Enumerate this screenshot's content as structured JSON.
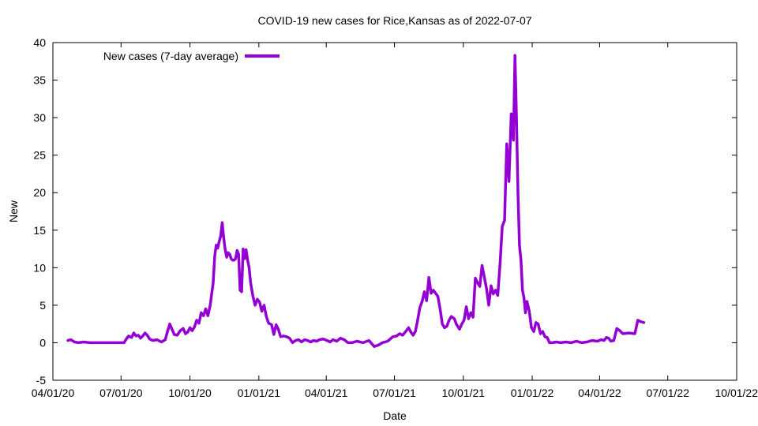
{
  "chart_data": {
    "type": "line",
    "title": "COVID-19 new cases for Rice,Kansas as of 2022-07-07",
    "xlabel": "Date",
    "ylabel": "New",
    "xlim": [
      "2020-04-01",
      "2022-10-01"
    ],
    "ylim": [
      -5,
      40
    ],
    "x_ticks": [
      {
        "date": "2020-04-01",
        "label": "04/01/20"
      },
      {
        "date": "2020-07-01",
        "label": "07/01/20"
      },
      {
        "date": "2020-10-01",
        "label": "10/01/20"
      },
      {
        "date": "2021-01-01",
        "label": "01/01/21"
      },
      {
        "date": "2021-04-01",
        "label": "04/01/21"
      },
      {
        "date": "2021-07-01",
        "label": "07/01/21"
      },
      {
        "date": "2021-10-01",
        "label": "10/01/21"
      },
      {
        "date": "2022-01-01",
        "label": "01/01/22"
      },
      {
        "date": "2022-04-01",
        "label": "04/01/22"
      },
      {
        "date": "2022-07-01",
        "label": "07/01/22"
      },
      {
        "date": "2022-10-01",
        "label": "10/01/22"
      }
    ],
    "y_ticks": [
      -5,
      0,
      5,
      10,
      15,
      20,
      25,
      30,
      35,
      40
    ],
    "grid": false,
    "legend": "top-left",
    "series": [
      {
        "name": "New cases (7-day average)",
        "color": "#9400D3",
        "points": [
          [
            "2020-04-21",
            0.3
          ],
          [
            "2020-04-25",
            0.4
          ],
          [
            "2020-04-30",
            0.1
          ],
          [
            "2020-05-05",
            0.0
          ],
          [
            "2020-05-12",
            0.1
          ],
          [
            "2020-05-20",
            0.0
          ],
          [
            "2020-06-01",
            0.0
          ],
          [
            "2020-06-15",
            0.0
          ],
          [
            "2020-06-30",
            0.0
          ],
          [
            "2020-07-05",
            0.0
          ],
          [
            "2020-07-08",
            0.5
          ],
          [
            "2020-07-11",
            0.9
          ],
          [
            "2020-07-15",
            0.7
          ],
          [
            "2020-07-18",
            1.3
          ],
          [
            "2020-07-21",
            0.9
          ],
          [
            "2020-07-24",
            1.0
          ],
          [
            "2020-07-27",
            0.6
          ],
          [
            "2020-07-30",
            0.9
          ],
          [
            "2020-08-02",
            1.3
          ],
          [
            "2020-08-05",
            1.0
          ],
          [
            "2020-08-08",
            0.5
          ],
          [
            "2020-08-12",
            0.3
          ],
          [
            "2020-08-18",
            0.4
          ],
          [
            "2020-08-24",
            0.1
          ],
          [
            "2020-08-29",
            0.4
          ],
          [
            "2020-09-01",
            1.5
          ],
          [
            "2020-09-04",
            2.5
          ],
          [
            "2020-09-07",
            1.8
          ],
          [
            "2020-09-10",
            1.1
          ],
          [
            "2020-09-14",
            1.0
          ],
          [
            "2020-09-18",
            1.6
          ],
          [
            "2020-09-22",
            1.9
          ],
          [
            "2020-09-25",
            1.2
          ],
          [
            "2020-09-28",
            1.4
          ],
          [
            "2020-10-01",
            2.0
          ],
          [
            "2020-10-04",
            1.6
          ],
          [
            "2020-10-07",
            2.1
          ],
          [
            "2020-10-10",
            3.0
          ],
          [
            "2020-10-13",
            2.6
          ],
          [
            "2020-10-16",
            4.0
          ],
          [
            "2020-10-19",
            3.6
          ],
          [
            "2020-10-22",
            4.5
          ],
          [
            "2020-10-25",
            3.6
          ],
          [
            "2020-10-28",
            5.0
          ],
          [
            "2020-11-01",
            8.0
          ],
          [
            "2020-11-03",
            11.5
          ],
          [
            "2020-11-05",
            13.0
          ],
          [
            "2020-11-07",
            12.6
          ],
          [
            "2020-11-09",
            13.5
          ],
          [
            "2020-11-11",
            14.2
          ],
          [
            "2020-11-13",
            16.0
          ],
          [
            "2020-11-15",
            14.0
          ],
          [
            "2020-11-17",
            12.4
          ],
          [
            "2020-11-19",
            11.4
          ],
          [
            "2020-11-21",
            12.0
          ],
          [
            "2020-11-23",
            11.8
          ],
          [
            "2020-11-25",
            11.2
          ],
          [
            "2020-11-27",
            11.0
          ],
          [
            "2020-11-29",
            11.0
          ],
          [
            "2020-12-01",
            11.2
          ],
          [
            "2020-12-03",
            12.3
          ],
          [
            "2020-12-05",
            11.8
          ],
          [
            "2020-12-07",
            7.0
          ],
          [
            "2020-12-09",
            6.8
          ],
          [
            "2020-12-11",
            12.5
          ],
          [
            "2020-12-13",
            11.2
          ],
          [
            "2020-12-15",
            12.4
          ],
          [
            "2020-12-17",
            11.0
          ],
          [
            "2020-12-19",
            10.0
          ],
          [
            "2020-12-21",
            8.0
          ],
          [
            "2020-12-24",
            6.2
          ],
          [
            "2020-12-27",
            5.0
          ],
          [
            "2020-12-30",
            5.8
          ],
          [
            "2021-01-02",
            5.4
          ],
          [
            "2021-01-05",
            4.2
          ],
          [
            "2021-01-08",
            5.0
          ],
          [
            "2021-01-11",
            3.5
          ],
          [
            "2021-01-14",
            2.6
          ],
          [
            "2021-01-18",
            2.4
          ],
          [
            "2021-01-21",
            1.1
          ],
          [
            "2021-01-24",
            2.4
          ],
          [
            "2021-01-27",
            1.8
          ],
          [
            "2021-01-30",
            0.8
          ],
          [
            "2021-02-03",
            0.9
          ],
          [
            "2021-02-07",
            0.8
          ],
          [
            "2021-02-11",
            0.6
          ],
          [
            "2021-02-15",
            0.0
          ],
          [
            "2021-02-19",
            0.3
          ],
          [
            "2021-02-23",
            0.4
          ],
          [
            "2021-02-27",
            0.1
          ],
          [
            "2021-03-03",
            0.4
          ],
          [
            "2021-03-07",
            0.3
          ],
          [
            "2021-03-11",
            0.1
          ],
          [
            "2021-03-15",
            0.3
          ],
          [
            "2021-03-19",
            0.2
          ],
          [
            "2021-03-23",
            0.4
          ],
          [
            "2021-03-28",
            0.5
          ],
          [
            "2021-04-02",
            0.3
          ],
          [
            "2021-04-06",
            0.1
          ],
          [
            "2021-04-10",
            0.4
          ],
          [
            "2021-04-15",
            0.2
          ],
          [
            "2021-04-20",
            0.6
          ],
          [
            "2021-04-25",
            0.4
          ],
          [
            "2021-04-30",
            0.0
          ],
          [
            "2021-05-05",
            0.0
          ],
          [
            "2021-05-12",
            0.2
          ],
          [
            "2021-05-20",
            0.0
          ],
          [
            "2021-05-28",
            0.3
          ],
          [
            "2021-06-04",
            -0.5
          ],
          [
            "2021-06-10",
            -0.3
          ],
          [
            "2021-06-15",
            0.0
          ],
          [
            "2021-06-22",
            0.2
          ],
          [
            "2021-06-29",
            0.8
          ],
          [
            "2021-07-04",
            0.9
          ],
          [
            "2021-07-08",
            1.2
          ],
          [
            "2021-07-12",
            1.0
          ],
          [
            "2021-07-16",
            1.5
          ],
          [
            "2021-07-20",
            2.0
          ],
          [
            "2021-07-23",
            1.4
          ],
          [
            "2021-07-26",
            1.0
          ],
          [
            "2021-07-29",
            1.5
          ],
          [
            "2021-08-01",
            3.0
          ],
          [
            "2021-08-04",
            4.7
          ],
          [
            "2021-08-07",
            5.5
          ],
          [
            "2021-08-10",
            6.8
          ],
          [
            "2021-08-13",
            5.6
          ],
          [
            "2021-08-16",
            8.7
          ],
          [
            "2021-08-19",
            6.6
          ],
          [
            "2021-08-22",
            7.0
          ],
          [
            "2021-08-25",
            6.6
          ],
          [
            "2021-08-28",
            6.2
          ],
          [
            "2021-08-31",
            4.5
          ],
          [
            "2021-09-03",
            2.5
          ],
          [
            "2021-09-06",
            2.0
          ],
          [
            "2021-09-09",
            2.2
          ],
          [
            "2021-09-12",
            3.0
          ],
          [
            "2021-09-15",
            3.5
          ],
          [
            "2021-09-19",
            3.2
          ],
          [
            "2021-09-22",
            2.4
          ],
          [
            "2021-09-26",
            1.8
          ],
          [
            "2021-09-29",
            2.5
          ],
          [
            "2021-10-02",
            3.0
          ],
          [
            "2021-10-05",
            4.8
          ],
          [
            "2021-10-08",
            3.2
          ],
          [
            "2021-10-11",
            4.0
          ],
          [
            "2021-10-14",
            3.4
          ],
          [
            "2021-10-17",
            8.6
          ],
          [
            "2021-10-20",
            8.0
          ],
          [
            "2021-10-23",
            7.5
          ],
          [
            "2021-10-26",
            10.3
          ],
          [
            "2021-10-29",
            8.8
          ],
          [
            "2021-11-01",
            7.2
          ],
          [
            "2021-11-04",
            5.0
          ],
          [
            "2021-11-07",
            7.6
          ],
          [
            "2021-11-10",
            6.5
          ],
          [
            "2021-11-13",
            7.0
          ],
          [
            "2021-11-16",
            6.3
          ],
          [
            "2021-11-19",
            10.5
          ],
          [
            "2021-11-22",
            15.5
          ],
          [
            "2021-11-25",
            16.3
          ],
          [
            "2021-11-28",
            26.5
          ],
          [
            "2021-12-01",
            21.5
          ],
          [
            "2021-12-04",
            30.5
          ],
          [
            "2021-12-07",
            27.0
          ],
          [
            "2021-12-09",
            38.3
          ],
          [
            "2021-12-11",
            30.0
          ],
          [
            "2021-12-13",
            20.0
          ],
          [
            "2021-12-15",
            13.0
          ],
          [
            "2021-12-17",
            11.0
          ],
          [
            "2021-12-19",
            7.0
          ],
          [
            "2021-12-21",
            6.0
          ],
          [
            "2021-12-23",
            4.0
          ],
          [
            "2021-12-25",
            5.5
          ],
          [
            "2021-12-28",
            4.2
          ],
          [
            "2021-12-31",
            2.0
          ],
          [
            "2022-01-03",
            1.5
          ],
          [
            "2022-01-06",
            2.7
          ],
          [
            "2022-01-09",
            2.5
          ],
          [
            "2022-01-12",
            1.2
          ],
          [
            "2022-01-15",
            1.5
          ],
          [
            "2022-01-18",
            0.8
          ],
          [
            "2022-01-21",
            0.7
          ],
          [
            "2022-01-24",
            0.0
          ],
          [
            "2022-01-28",
            0.0
          ],
          [
            "2022-02-02",
            0.1
          ],
          [
            "2022-02-08",
            0.0
          ],
          [
            "2022-02-15",
            0.1
          ],
          [
            "2022-02-22",
            0.0
          ],
          [
            "2022-03-01",
            0.2
          ],
          [
            "2022-03-08",
            0.0
          ],
          [
            "2022-03-15",
            0.1
          ],
          [
            "2022-03-22",
            0.3
          ],
          [
            "2022-03-29",
            0.2
          ],
          [
            "2022-04-03",
            0.4
          ],
          [
            "2022-04-07",
            0.3
          ],
          [
            "2022-04-10",
            0.7
          ],
          [
            "2022-04-13",
            0.6
          ],
          [
            "2022-04-16",
            0.2
          ],
          [
            "2022-04-20",
            0.3
          ],
          [
            "2022-04-24",
            1.9
          ],
          [
            "2022-04-28",
            1.6
          ],
          [
            "2022-05-02",
            1.2
          ],
          [
            "2022-05-10",
            1.3
          ],
          [
            "2022-05-18",
            1.2
          ],
          [
            "2022-05-22",
            3.0
          ],
          [
            "2022-05-26",
            2.8
          ],
          [
            "2022-05-30",
            2.7
          ]
        ]
      }
    ]
  }
}
